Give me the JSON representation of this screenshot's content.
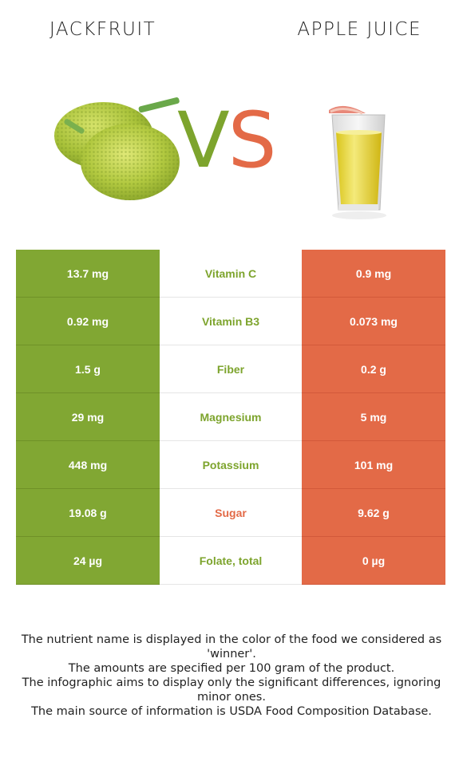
{
  "header": {
    "left_food": "JACKFRUIT",
    "right_food": "APPLE JUICE",
    "vs_v": "V",
    "vs_s": "S"
  },
  "colors": {
    "left": "#81a733",
    "right": "#e36a47"
  },
  "images": {
    "left_icon": "jackfruit-image",
    "right_icon": "apple-juice-glass-image"
  },
  "rows": [
    {
      "left": "13.7 mg",
      "nutrient": "Vitamin C",
      "right": "0.9 mg",
      "winner": "left"
    },
    {
      "left": "0.92 mg",
      "nutrient": "Vitamin B3",
      "right": "0.073 mg",
      "winner": "left"
    },
    {
      "left": "1.5 g",
      "nutrient": "Fiber",
      "right": "0.2 g",
      "winner": "left"
    },
    {
      "left": "29 mg",
      "nutrient": "Magnesium",
      "right": "5 mg",
      "winner": "left"
    },
    {
      "left": "448 mg",
      "nutrient": "Potassium",
      "right": "101 mg",
      "winner": "left"
    },
    {
      "left": "19.08 g",
      "nutrient": "Sugar",
      "right": "9.62 g",
      "winner": "right"
    },
    {
      "left": "24 µg",
      "nutrient": "Folate, total",
      "right": "0 µg",
      "winner": "left"
    }
  ],
  "notes": [
    "The nutrient name is displayed in the color of the food we considered as 'winner'.",
    "The amounts are specified per 100 gram of the product.",
    "The infographic aims to display only the significant differences, ignoring minor ones.",
    "The main source of information is USDA Food Composition Database."
  ]
}
